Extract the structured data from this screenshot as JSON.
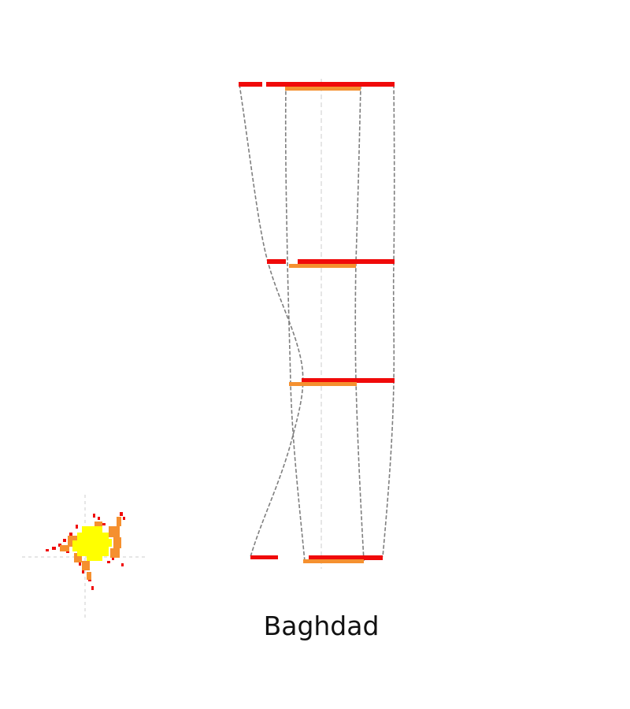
{
  "city": "Baghdad",
  "colors": {
    "red": "#f00a0a",
    "orange": "#f5902f",
    "yellow": "#ffff00",
    "connector": "#7f7f7f",
    "axis": "#cccccc"
  },
  "icon": "urban-growth-blob-icon"
}
